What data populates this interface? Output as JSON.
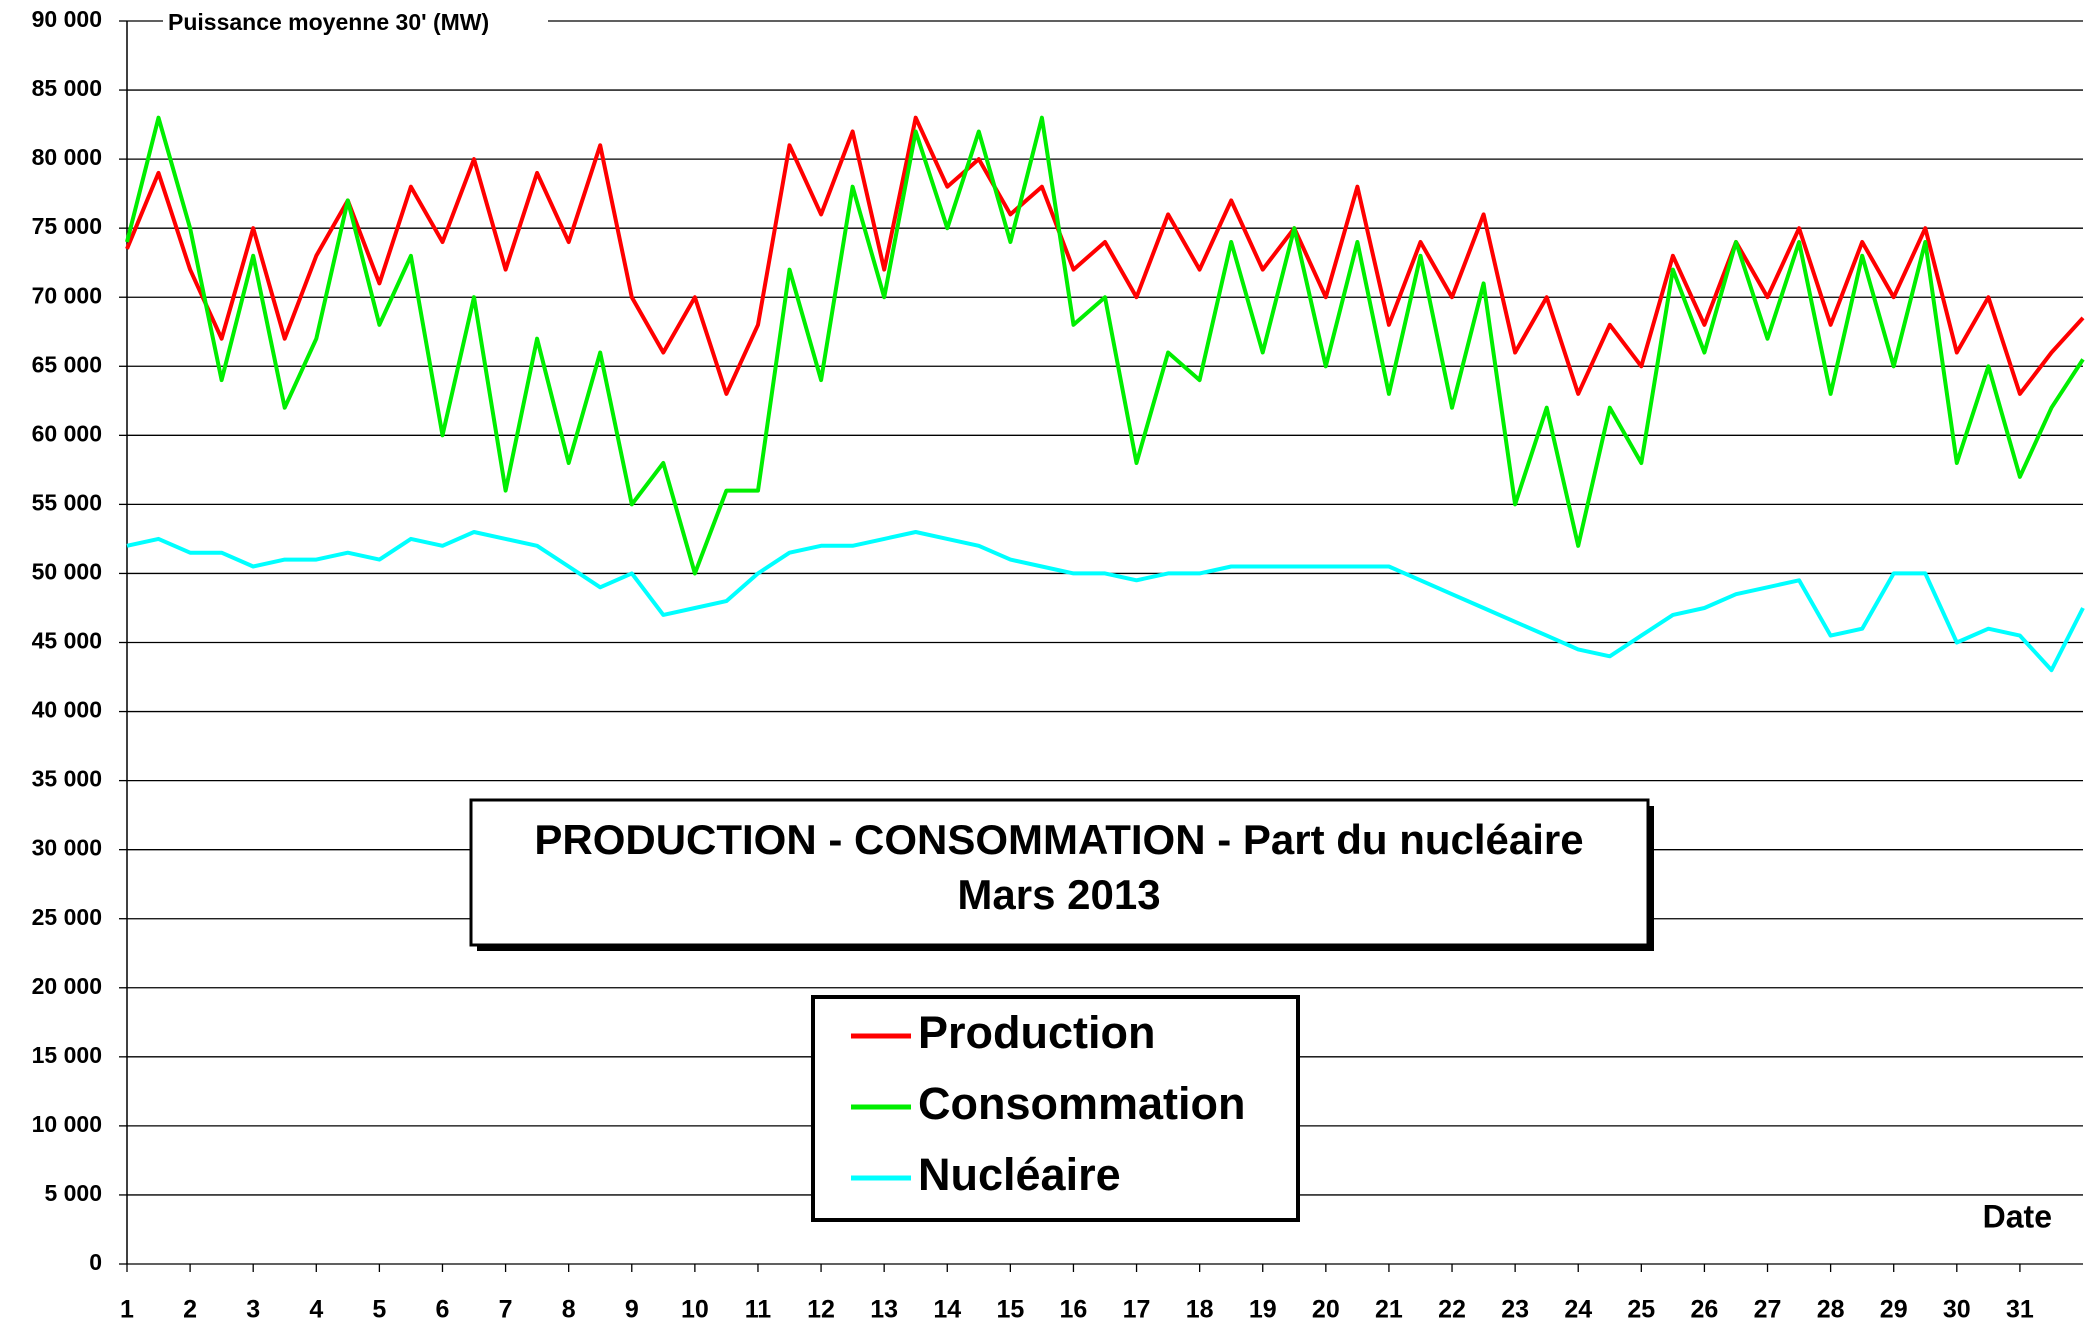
{
  "chart_data": {
    "type": "line",
    "title": "PRODUCTION - CONSOMMATION - Part du nucléaire",
    "subtitle": "Mars  2013",
    "y_label": "Puissance moyenne 30' (MW)",
    "x_label": "Date",
    "x": [
      1,
      1.5,
      2,
      2.5,
      3,
      3.5,
      4,
      4.5,
      5,
      5.5,
      6,
      6.5,
      7,
      7.5,
      8,
      8.5,
      9,
      9.5,
      10,
      10.5,
      11,
      11.5,
      12,
      12.5,
      13,
      13.5,
      14,
      14.5,
      15,
      15.5,
      16,
      16.5,
      17,
      17.5,
      18,
      18.5,
      19,
      19.5,
      20,
      20.5,
      21,
      21.5,
      22,
      22.5,
      23,
      23.5,
      24,
      24.5,
      25,
      25.5,
      26,
      26.5,
      27,
      27.5,
      28,
      28.5,
      29,
      29.5,
      30,
      30.5,
      31,
      31.5,
      32
    ],
    "series": [
      {
        "name": "Production",
        "color": "#ff0000",
        "values": [
          73500,
          79000,
          72000,
          67000,
          75000,
          67000,
          73000,
          77000,
          71000,
          78000,
          74000,
          80000,
          72000,
          79000,
          74000,
          81000,
          70000,
          66000,
          70000,
          63000,
          68000,
          81000,
          76000,
          82000,
          72000,
          83000,
          78000,
          80000,
          76000,
          78000,
          72000,
          74000,
          70000,
          76000,
          72000,
          77000,
          72000,
          75000,
          70000,
          78000,
          68000,
          74000,
          70000,
          76000,
          66000,
          70000,
          63000,
          68000,
          65000,
          73000,
          68000,
          74000,
          70000,
          75000,
          68000,
          74000,
          70000,
          75000,
          66000,
          70000,
          63000,
          66000,
          68500
        ]
      },
      {
        "name": "Consommation",
        "color": "#00ee00",
        "values": [
          74000,
          83000,
          75000,
          64000,
          73000,
          62000,
          67000,
          77000,
          68000,
          73000,
          60000,
          70000,
          56000,
          67000,
          58000,
          66000,
          55000,
          58000,
          50000,
          56000,
          56000,
          72000,
          64000,
          78000,
          70000,
          82000,
          75000,
          82000,
          74000,
          83000,
          68000,
          70000,
          58000,
          66000,
          64000,
          74000,
          66000,
          75000,
          65000,
          74000,
          63000,
          73000,
          62000,
          71000,
          55000,
          62000,
          52000,
          62000,
          58000,
          72000,
          66000,
          74000,
          67000,
          74000,
          63000,
          73000,
          65000,
          74000,
          58000,
          65000,
          57000,
          62000,
          65500
        ]
      },
      {
        "name": "Nucléaire",
        "color": "#00ffff",
        "values": [
          52000,
          52500,
          51500,
          51500,
          50500,
          51000,
          51000,
          51500,
          51000,
          52500,
          52000,
          53000,
          52500,
          52000,
          50500,
          49000,
          50000,
          47000,
          47500,
          48000,
          50000,
          51500,
          52000,
          52000,
          52500,
          53000,
          52500,
          52000,
          51000,
          50500,
          50000,
          50000,
          49500,
          50000,
          50000,
          50500,
          50500,
          50500,
          50500,
          50500,
          50500,
          49500,
          48500,
          47500,
          46500,
          45500,
          44500,
          44000,
          45500,
          47000,
          47500,
          48500,
          49000,
          49500,
          45500,
          46000,
          50000,
          50000,
          45000,
          46000,
          45500,
          43000,
          47500
        ]
      }
    ],
    "xlim": [
      1,
      32
    ],
    "xticks": [
      1,
      2,
      3,
      4,
      5,
      6,
      7,
      8,
      9,
      10,
      11,
      12,
      13,
      14,
      15,
      16,
      17,
      18,
      19,
      20,
      21,
      22,
      23,
      24,
      25,
      26,
      27,
      28,
      29,
      30,
      31
    ],
    "ylim": [
      0,
      90000
    ],
    "yticks": [
      0,
      {
        "value": 5000,
        "label": "5 000"
      },
      {
        "value": 10000,
        "label": "10 000"
      },
      {
        "value": 15000,
        "label": "15 000"
      },
      {
        "value": 20000,
        "label": "20 000"
      },
      {
        "value": 25000,
        "label": "25 000"
      },
      {
        "value": 30000,
        "label": "30 000"
      },
      {
        "value": 35000,
        "label": "35 000"
      },
      {
        "value": 40000,
        "label": "40 000"
      },
      {
        "value": 45000,
        "label": "45 000"
      },
      {
        "value": 50000,
        "label": "50 000"
      },
      {
        "value": 55000,
        "label": "55 000"
      },
      {
        "value": 60000,
        "label": "60 000"
      },
      {
        "value": 65000,
        "label": "65 000"
      },
      {
        "value": 70000,
        "label": "70 000"
      },
      {
        "value": 75000,
        "label": "75 000"
      },
      {
        "value": 80000,
        "label": "80 000"
      },
      {
        "value": 85000,
        "label": "85 000"
      },
      {
        "value": 90000,
        "label": "90 000"
      }
    ],
    "grid": true
  }
}
